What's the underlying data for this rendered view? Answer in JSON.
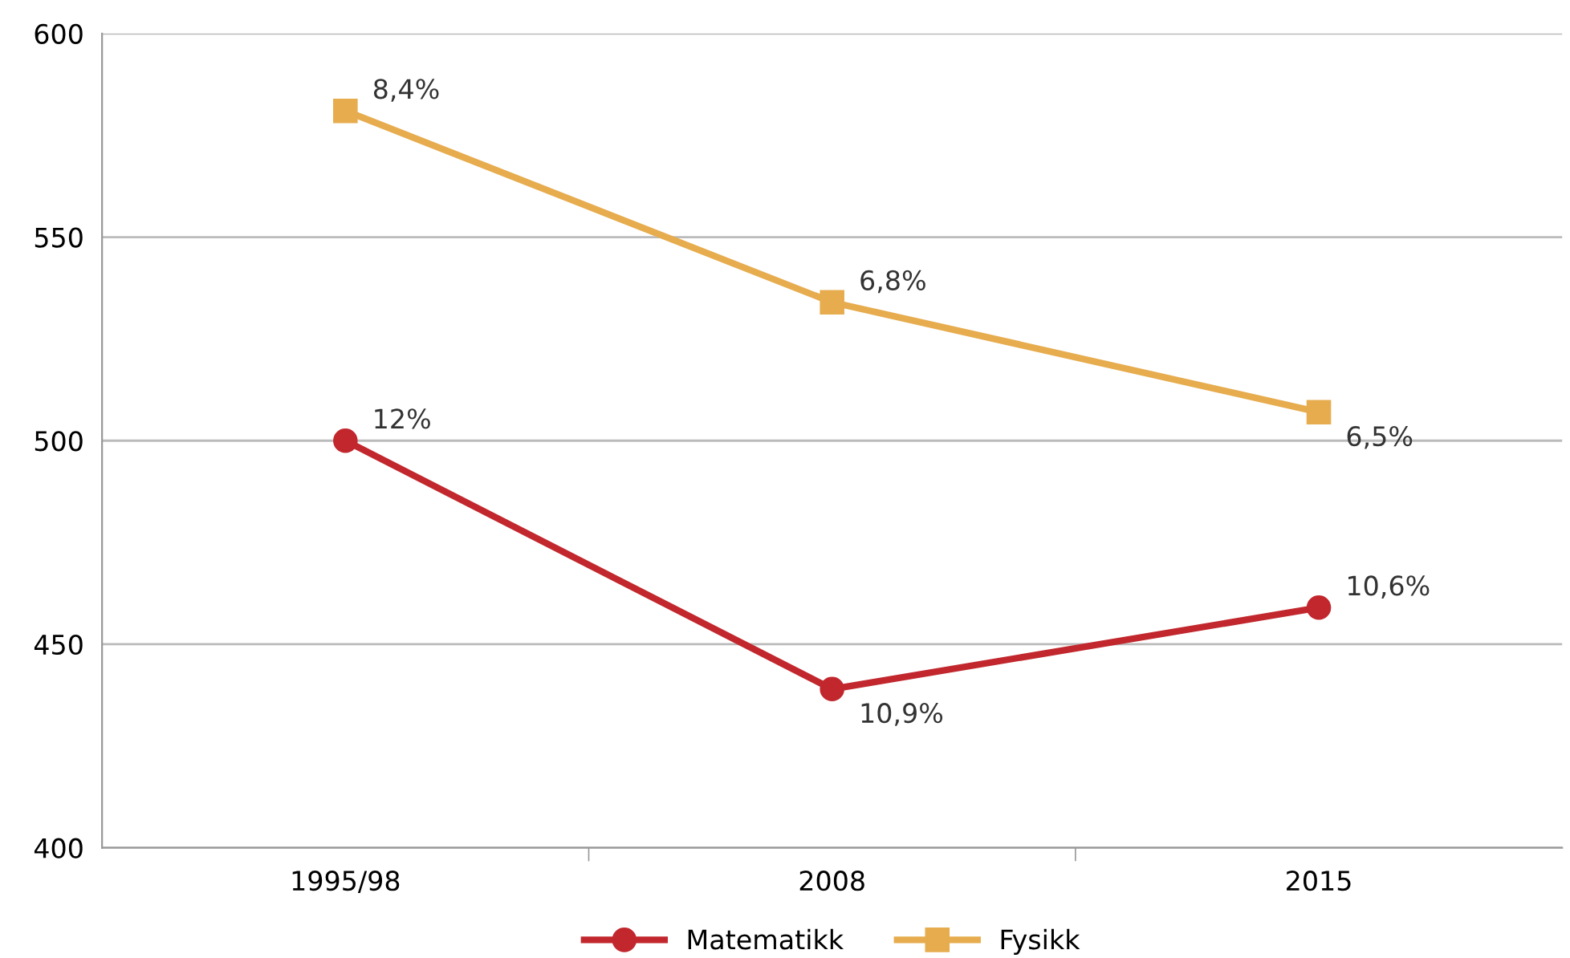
{
  "chart_data": {
    "type": "line",
    "categories": [
      "1995/98",
      "2008",
      "2015"
    ],
    "series": [
      {
        "name": "Matematikk",
        "color": "#c1272d",
        "values": [
          500,
          439,
          459
        ],
        "marker": "circle"
      },
      {
        "name": "Fysikk",
        "color": "#e6ac4e",
        "values": [
          581,
          534,
          507
        ],
        "marker": "square"
      }
    ],
    "annotations": [
      {
        "text": "12%",
        "x": "1995/98",
        "y": 500
      },
      {
        "text": "10,9%",
        "x": "2008",
        "y": 439
      },
      {
        "text": "10,6%",
        "x": "2015",
        "y": 459
      },
      {
        "text": "8,4%",
        "x": "1995/98",
        "y": 581
      },
      {
        "text": "6,8%",
        "x": "2008",
        "y": 534
      },
      {
        "text": "6,5%",
        "x": "2015",
        "y": 507
      }
    ],
    "ylim": [
      400,
      600
    ],
    "yticks": [
      400,
      450,
      500,
      550,
      600
    ],
    "grid": "y",
    "legend": "bottom",
    "line_style": "solid"
  }
}
